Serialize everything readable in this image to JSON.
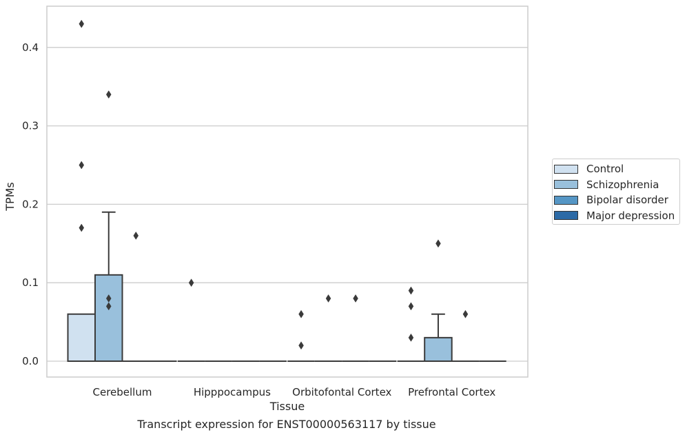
{
  "chart_data": {
    "type": "box",
    "title": "",
    "xlabel": "Tissue",
    "ylabel": "TPMs",
    "caption": "Transcript expression for ENST00000563117 by tissue",
    "categories": [
      "Cerebellum",
      "Hipppocampus",
      "Orbitofontal Cortex",
      "Prefrontal Cortex"
    ],
    "yticks": [
      0.0,
      0.1,
      0.2,
      0.3,
      0.4
    ],
    "ytick_labels": [
      "0.0",
      "0.1",
      "0.2",
      "0.3",
      "0.4"
    ],
    "ylim": [
      -0.021,
      0.452
    ],
    "grid": "horizontal",
    "legend_position": "right",
    "series": [
      {
        "name": "Control",
        "color": "#d0e1f0",
        "boxes": [
          {
            "q1": 0.0,
            "median": 0.0,
            "q3": 0.06,
            "whisker_low": 0.0,
            "whisker_high": 0.06,
            "outliers": [
              0.43,
              0.25,
              0.17
            ]
          },
          {
            "q1": 0.0,
            "median": 0.0,
            "q3": 0.0,
            "whisker_low": 0.0,
            "whisker_high": 0.0,
            "outliers": [
              0.1
            ]
          },
          {
            "q1": 0.0,
            "median": 0.0,
            "q3": 0.0,
            "whisker_low": 0.0,
            "whisker_high": 0.0,
            "outliers": [
              0.06,
              0.02
            ]
          },
          {
            "q1": 0.0,
            "median": 0.0,
            "q3": 0.0,
            "whisker_low": 0.0,
            "whisker_high": 0.0,
            "outliers": [
              0.09,
              0.07,
              0.03
            ]
          }
        ]
      },
      {
        "name": "Schizophrenia",
        "color": "#99c0dc",
        "boxes": [
          {
            "q1": 0.0,
            "median": 0.0,
            "q3": 0.11,
            "whisker_low": 0.0,
            "whisker_high": 0.19,
            "outliers": [
              0.34,
              0.08,
              0.07
            ]
          },
          {
            "q1": 0.0,
            "median": 0.0,
            "q3": 0.0,
            "whisker_low": 0.0,
            "whisker_high": 0.0,
            "outliers": []
          },
          {
            "q1": 0.0,
            "median": 0.0,
            "q3": 0.0,
            "whisker_low": 0.0,
            "whisker_high": 0.0,
            "outliers": [
              0.08
            ]
          },
          {
            "q1": 0.0,
            "median": 0.0,
            "q3": 0.03,
            "whisker_low": 0.0,
            "whisker_high": 0.06,
            "outliers": [
              0.15
            ]
          }
        ]
      },
      {
        "name": "Bipolar disorder",
        "color": "#5596c5",
        "boxes": [
          {
            "q1": 0.0,
            "median": 0.0,
            "q3": 0.0,
            "whisker_low": 0.0,
            "whisker_high": 0.0,
            "outliers": [
              0.16
            ]
          },
          {
            "q1": 0.0,
            "median": 0.0,
            "q3": 0.0,
            "whisker_low": 0.0,
            "whisker_high": 0.0,
            "outliers": []
          },
          {
            "q1": 0.0,
            "median": 0.0,
            "q3": 0.0,
            "whisker_low": 0.0,
            "whisker_high": 0.0,
            "outliers": [
              0.08
            ]
          },
          {
            "q1": 0.0,
            "median": 0.0,
            "q3": 0.0,
            "whisker_low": 0.0,
            "whisker_high": 0.0,
            "outliers": [
              0.06
            ]
          }
        ]
      },
      {
        "name": "Major depression",
        "color": "#2c6aa6",
        "boxes": [
          {
            "q1": 0.0,
            "median": 0.0,
            "q3": 0.0,
            "whisker_low": 0.0,
            "whisker_high": 0.0,
            "outliers": []
          },
          {
            "q1": 0.0,
            "median": 0.0,
            "q3": 0.0,
            "whisker_low": 0.0,
            "whisker_high": 0.0,
            "outliers": []
          },
          {
            "q1": 0.0,
            "median": 0.0,
            "q3": 0.0,
            "whisker_low": 0.0,
            "whisker_high": 0.0,
            "outliers": []
          },
          {
            "q1": 0.0,
            "median": 0.0,
            "q3": 0.0,
            "whisker_low": 0.0,
            "whisker_high": 0.0,
            "outliers": []
          }
        ]
      }
    ]
  }
}
